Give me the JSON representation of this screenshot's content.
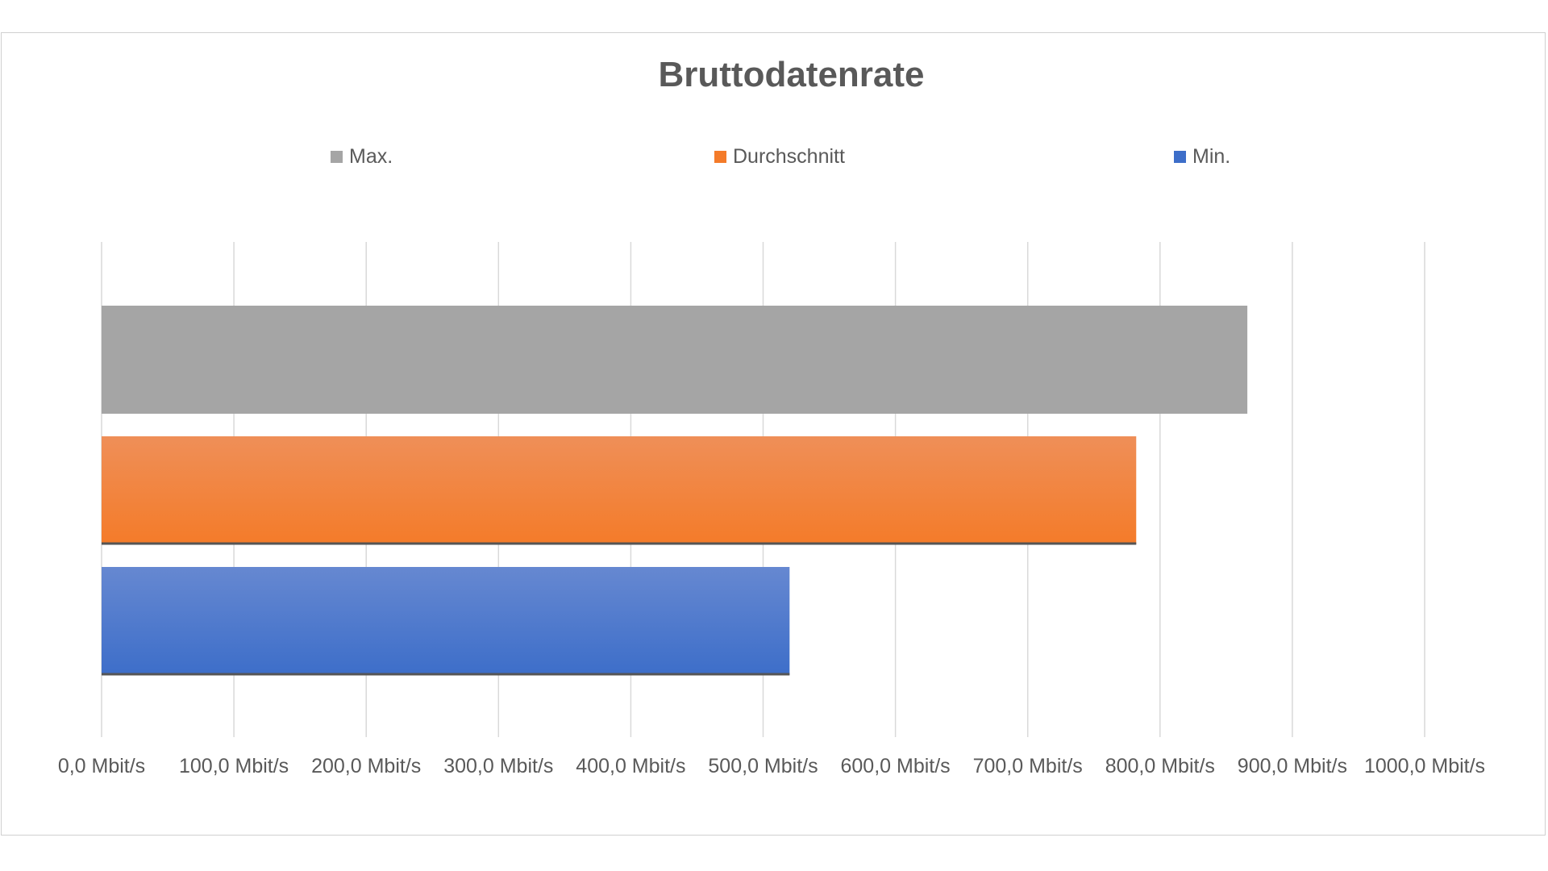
{
  "chart_data": {
    "type": "bar",
    "orientation": "horizontal",
    "title": "Bruttodatenrate",
    "xlabel": "",
    "ylabel": "",
    "xlim": [
      0,
      1000
    ],
    "grid": true,
    "legend_position": "top",
    "x_ticks": [
      0,
      100,
      200,
      300,
      400,
      500,
      600,
      700,
      800,
      900,
      1000
    ],
    "tick_labels": [
      "0,0 Mbit/s",
      "100,0 Mbit/s",
      "200,0 Mbit/s",
      "300,0 Mbit/s",
      "400,0 Mbit/s",
      "500,0 Mbit/s",
      "600,0 Mbit/s",
      "700,0 Mbit/s",
      "800,0 Mbit/s",
      "900,0 Mbit/s",
      "1000,0 Mbit/s"
    ],
    "series": [
      {
        "name": "Max.",
        "value": 866,
        "color": "#a5a5a5",
        "color_light": "#a5a5a5"
      },
      {
        "name": "Durchschnitt",
        "value": 782,
        "color": "#f47b29",
        "color_light": "#ef8f58"
      },
      {
        "name": "Min.",
        "value": 520,
        "color": "#3d6ec9",
        "color_light": "#6688d1"
      }
    ]
  }
}
